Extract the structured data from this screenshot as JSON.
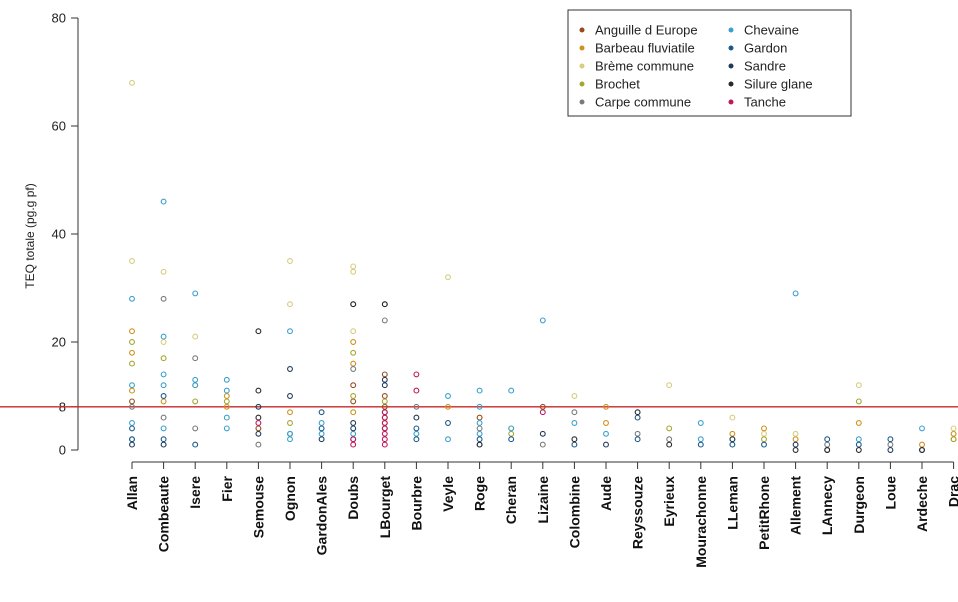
{
  "chart_data": {
    "type": "scatter",
    "title": "",
    "xlabel": "",
    "ylabel": "TEQ totale (pg.g pf)",
    "ylim": [
      0,
      80
    ],
    "yticks": [
      0,
      8,
      20,
      40,
      60,
      80
    ],
    "grid": false,
    "reference_line": {
      "y": 8,
      "color": "#c62828"
    },
    "legend_position": "top-right",
    "categories": [
      "Allan",
      "Combeaute",
      "Isere",
      "Fier",
      "Semouse",
      "Ognon",
      "GardonAles",
      "Doubs",
      "LBourget",
      "Bourbre",
      "Veyle",
      "Roge",
      "Cheran",
      "Lizaine",
      "Colombine",
      "Aude",
      "Reyssouze",
      "Eyrieux",
      "Mourachonne",
      "LLeman",
      "PetitRhone",
      "Allement",
      "LAnnecy",
      "Durgeon",
      "Loue",
      "Ardeche",
      "Drac"
    ],
    "series": [
      {
        "name": "Anguille d Europe",
        "color": "#9a4a1a",
        "points": [
          [
            "Doubs",
            9
          ],
          [
            "Doubs",
            12
          ],
          [
            "LBourget",
            5
          ],
          [
            "LBourget",
            10
          ],
          [
            "LBourget",
            8
          ],
          [
            "LBourget",
            14
          ],
          [
            "LBourget",
            6
          ],
          [
            "Lizaine",
            8
          ],
          [
            "Allan",
            9
          ],
          [
            "Semouse",
            4
          ],
          [
            "Roge",
            6
          ]
        ]
      },
      {
        "name": "Barbeau fluviatile",
        "color": "#d0901c",
        "points": [
          [
            "Allan",
            22
          ],
          [
            "Allan",
            18
          ],
          [
            "Allan",
            11
          ],
          [
            "Combeaute",
            9
          ],
          [
            "Isere",
            12
          ],
          [
            "Fier",
            10
          ],
          [
            "Fier",
            8
          ],
          [
            "Ognon",
            7
          ],
          [
            "Doubs",
            20
          ],
          [
            "Doubs",
            16
          ],
          [
            "Doubs",
            7
          ],
          [
            "Veyle",
            8
          ],
          [
            "Aude",
            8
          ],
          [
            "Aude",
            5
          ],
          [
            "LLeman",
            3
          ],
          [
            "PetitRhone",
            4
          ],
          [
            "Ardeche",
            1
          ],
          [
            "Drac",
            3
          ],
          [
            "Drac",
            2
          ],
          [
            "Durgeon",
            5
          ],
          [
            "Allement",
            2
          ]
        ]
      },
      {
        "name": "Brème commune",
        "color": "#d8cc80",
        "points": [
          [
            "Allan",
            68
          ],
          [
            "Allan",
            35
          ],
          [
            "Combeaute",
            33
          ],
          [
            "Combeaute",
            20
          ],
          [
            "Isere",
            21
          ],
          [
            "Ognon",
            35
          ],
          [
            "Ognon",
            27
          ],
          [
            "Doubs",
            34
          ],
          [
            "Doubs",
            33
          ],
          [
            "Doubs",
            22
          ],
          [
            "Veyle",
            32
          ],
          [
            "Eyrieux",
            12
          ],
          [
            "Colombine",
            10
          ],
          [
            "Durgeon",
            12
          ],
          [
            "LLeman",
            6
          ],
          [
            "PetitRhone",
            3
          ],
          [
            "Cheran",
            4
          ],
          [
            "Allement",
            3
          ],
          [
            "Drac",
            4
          ]
        ]
      },
      {
        "name": "Brochet",
        "color": "#a5a530",
        "points": [
          [
            "Allan",
            20
          ],
          [
            "Allan",
            16
          ],
          [
            "Combeaute",
            17
          ],
          [
            "Isere",
            9
          ],
          [
            "Fier",
            9
          ],
          [
            "Ognon",
            5
          ],
          [
            "Doubs",
            18
          ],
          [
            "Doubs",
            10
          ],
          [
            "LBourget",
            9
          ],
          [
            "Durgeon",
            9
          ],
          [
            "Eyrieux",
            4
          ],
          [
            "LLeman",
            2
          ],
          [
            "PetitRhone",
            2
          ],
          [
            "Cheran",
            3
          ],
          [
            "Drac",
            2
          ]
        ]
      },
      {
        "name": "Carpe commune",
        "color": "#7a7a7a",
        "points": [
          [
            "Allan",
            8
          ],
          [
            "Combeaute",
            28
          ],
          [
            "Combeaute",
            6
          ],
          [
            "Isere",
            17
          ],
          [
            "Isere",
            4
          ],
          [
            "Semouse",
            1
          ],
          [
            "Ognon",
            3
          ],
          [
            "Doubs",
            27
          ],
          [
            "Doubs",
            15
          ],
          [
            "LBourget",
            27
          ],
          [
            "LBourget",
            24
          ],
          [
            "Bourbre",
            8
          ],
          [
            "Roge",
            4
          ],
          [
            "Lizaine",
            1
          ],
          [
            "Colombine",
            7
          ],
          [
            "Reyssouze",
            3
          ],
          [
            "Eyrieux",
            2
          ],
          [
            "LAnnecy",
            1
          ],
          [
            "Loue",
            1
          ]
        ]
      },
      {
        "name": "Chevaine",
        "color": "#3aa0cc",
        "points": [
          [
            "Allan",
            28
          ],
          [
            "Allan",
            12
          ],
          [
            "Allan",
            5
          ],
          [
            "Allan",
            2
          ],
          [
            "Combeaute",
            46
          ],
          [
            "Combeaute",
            21
          ],
          [
            "Combeaute",
            14
          ],
          [
            "Combeaute",
            12
          ],
          [
            "Combeaute",
            4
          ],
          [
            "Isere",
            29
          ],
          [
            "Isere",
            13
          ],
          [
            "Isere",
            12
          ],
          [
            "Fier",
            13
          ],
          [
            "Fier",
            11
          ],
          [
            "Fier",
            6
          ],
          [
            "Fier",
            4
          ],
          [
            "GardonAles",
            5
          ],
          [
            "GardonAles",
            3
          ],
          [
            "Ognon",
            22
          ],
          [
            "Ognon",
            3
          ],
          [
            "Ognon",
            2
          ],
          [
            "Doubs",
            3
          ],
          [
            "Bourbre",
            3
          ],
          [
            "Veyle",
            10
          ],
          [
            "Veyle",
            2
          ],
          [
            "Roge",
            11
          ],
          [
            "Roge",
            8
          ],
          [
            "Roge",
            5
          ],
          [
            "Roge",
            3
          ],
          [
            "Roge",
            1
          ],
          [
            "Cheran",
            11
          ],
          [
            "Cheran",
            4
          ],
          [
            "Lizaine",
            24
          ],
          [
            "Colombine",
            5
          ],
          [
            "Aude",
            3
          ],
          [
            "Mourachonne",
            5
          ],
          [
            "Mourachonne",
            2
          ],
          [
            "Ardeche",
            4
          ],
          [
            "Allement",
            29
          ],
          [
            "Durgeon",
            2
          ]
        ]
      },
      {
        "name": "Gardon",
        "color": "#1c5a8a",
        "points": [
          [
            "Allan",
            4
          ],
          [
            "Allan",
            2
          ],
          [
            "Combeaute",
            10
          ],
          [
            "Combeaute",
            2
          ],
          [
            "Isere",
            1
          ],
          [
            "GardonAles",
            7
          ],
          [
            "GardonAles",
            4
          ],
          [
            "Doubs",
            2
          ],
          [
            "Bourbre",
            4
          ],
          [
            "Bourbre",
            2
          ],
          [
            "Veyle",
            5
          ],
          [
            "Roge",
            2
          ],
          [
            "Cheran",
            2
          ],
          [
            "Colombine",
            1
          ],
          [
            "Reyssouze",
            6
          ],
          [
            "Reyssouze",
            2
          ],
          [
            "Mourachonne",
            1
          ],
          [
            "LLeman",
            1
          ],
          [
            "PetitRhone",
            1
          ],
          [
            "LAnnecy",
            2
          ],
          [
            "Durgeon",
            1
          ],
          [
            "Loue",
            2
          ],
          [
            "Ardeche",
            0
          ]
        ]
      },
      {
        "name": "Sandre",
        "color": "#1f3a5a",
        "points": [
          [
            "Allan",
            1
          ],
          [
            "Combeaute",
            1
          ],
          [
            "Semouse",
            8
          ],
          [
            "Semouse",
            3
          ],
          [
            "Ognon",
            10
          ],
          [
            "Ognon",
            15
          ],
          [
            "GardonAles",
            2
          ],
          [
            "Doubs",
            5
          ],
          [
            "Doubs",
            4
          ],
          [
            "LBourget",
            13
          ],
          [
            "LBourget",
            12
          ],
          [
            "LBourget",
            7
          ],
          [
            "LBourget",
            4
          ],
          [
            "Bourbre",
            6
          ],
          [
            "Lizaine",
            3
          ],
          [
            "Aude",
            1
          ],
          [
            "LLeman",
            2
          ],
          [
            "Allement",
            1
          ],
          [
            "LAnnecy",
            0
          ],
          [
            "Loue",
            0
          ]
        ]
      },
      {
        "name": "Silure glane",
        "color": "#2a2a2a",
        "points": [
          [
            "Semouse",
            22
          ],
          [
            "Semouse",
            6
          ],
          [
            "Semouse",
            11
          ],
          [
            "Doubs",
            27
          ],
          [
            "LBourget",
            27
          ],
          [
            "Reyssouze",
            7
          ],
          [
            "Roge",
            1
          ],
          [
            "Colombine",
            2
          ],
          [
            "Eyrieux",
            1
          ],
          [
            "Durgeon",
            0
          ],
          [
            "Ardeche",
            0
          ],
          [
            "Allement",
            0
          ],
          [
            "LAnnecy",
            0
          ]
        ]
      },
      {
        "name": "Tanche",
        "color": "#c2185b",
        "points": [
          [
            "LBourget",
            6
          ],
          [
            "LBourget",
            5
          ],
          [
            "LBourget",
            4
          ],
          [
            "LBourget",
            3
          ],
          [
            "LBourget",
            2
          ],
          [
            "LBourget",
            1
          ],
          [
            "LBourget",
            7
          ],
          [
            "Doubs",
            1
          ],
          [
            "Doubs",
            2
          ],
          [
            "Bourbre",
            14
          ],
          [
            "Bourbre",
            11
          ],
          [
            "Lizaine",
            7
          ],
          [
            "Semouse",
            5
          ]
        ]
      }
    ]
  }
}
